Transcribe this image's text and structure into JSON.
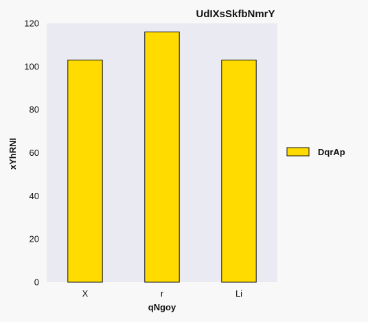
{
  "colors": {
    "page_background": "#f8f8f8",
    "plot_background": "#eaeaf2",
    "bar_fill": "#ffdb00",
    "bar_stroke": "#111111"
  },
  "chart_data": {
    "type": "bar",
    "title": "UdIXsSkfbNmrY",
    "xlabel": "qNgoy",
    "ylabel": "xYhRNI",
    "categories": [
      "X",
      "r",
      "Li"
    ],
    "series": [
      {
        "name": "DqrAp",
        "values": [
          103,
          116,
          103
        ]
      }
    ],
    "ylim": [
      0,
      120
    ],
    "yticks": [
      0,
      20,
      40,
      60,
      80,
      100,
      120
    ],
    "grid": false,
    "legend": "right"
  }
}
